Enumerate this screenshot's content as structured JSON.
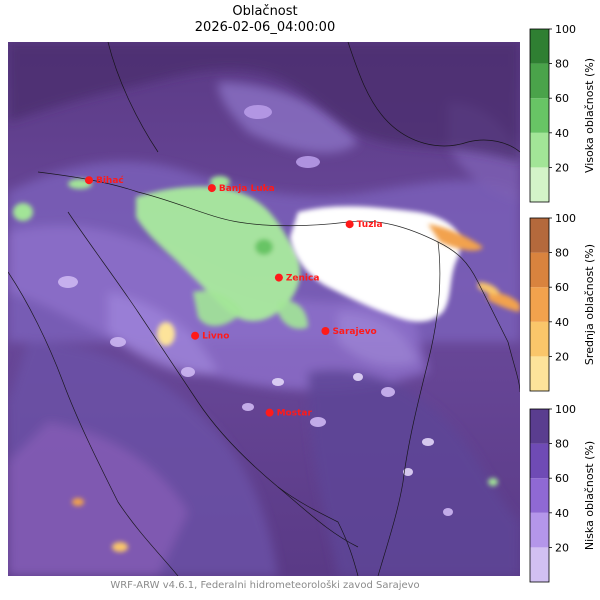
{
  "header": {
    "title": "Oblačnost",
    "datetime": "2026-02-06_04:00:00"
  },
  "map": {
    "cities": [
      {
        "name": "Bihać",
        "lon": 15.87,
        "lat": 44.82
      },
      {
        "name": "Banja Luka",
        "lon": 17.19,
        "lat": 44.77
      },
      {
        "name": "Tuzla",
        "lon": 18.67,
        "lat": 44.54
      },
      {
        "name": "Zenica",
        "lon": 17.91,
        "lat": 44.2
      },
      {
        "name": "Sarajevo",
        "lon": 18.41,
        "lat": 43.86
      },
      {
        "name": "Livno",
        "lon": 17.01,
        "lat": 43.83
      },
      {
        "name": "Mostar",
        "lon": 17.81,
        "lat": 43.34
      }
    ],
    "city_color": "#ff1a1a"
  },
  "colorbars": [
    {
      "label": "Visoka oblačnost (%)",
      "ticks": [
        "100",
        "80",
        "60",
        "40",
        "20"
      ],
      "colors": [
        "#d3f3c8",
        "#a2e597",
        "#68c465",
        "#4aa34a",
        "#2f7f32"
      ]
    },
    {
      "label": "Srednja oblačnost (%)",
      "ticks": [
        "100",
        "80",
        "60",
        "40",
        "20"
      ],
      "colors": [
        "#fde39a",
        "#fac66a",
        "#f2a24d",
        "#d9833e",
        "#b4693c"
      ]
    },
    {
      "label": "Niska oblačnost (%)",
      "ticks": [
        "100",
        "80",
        "60",
        "40",
        "20"
      ],
      "colors": [
        "#d2c0f2",
        "#b496ea",
        "#8f69d4",
        "#6f4bb5",
        "#5a3d8f"
      ]
    }
  ],
  "footer": {
    "credit": "WRF-ARW v4.6.1, Federalni hidrometeorološki zavod Sarajevo"
  }
}
